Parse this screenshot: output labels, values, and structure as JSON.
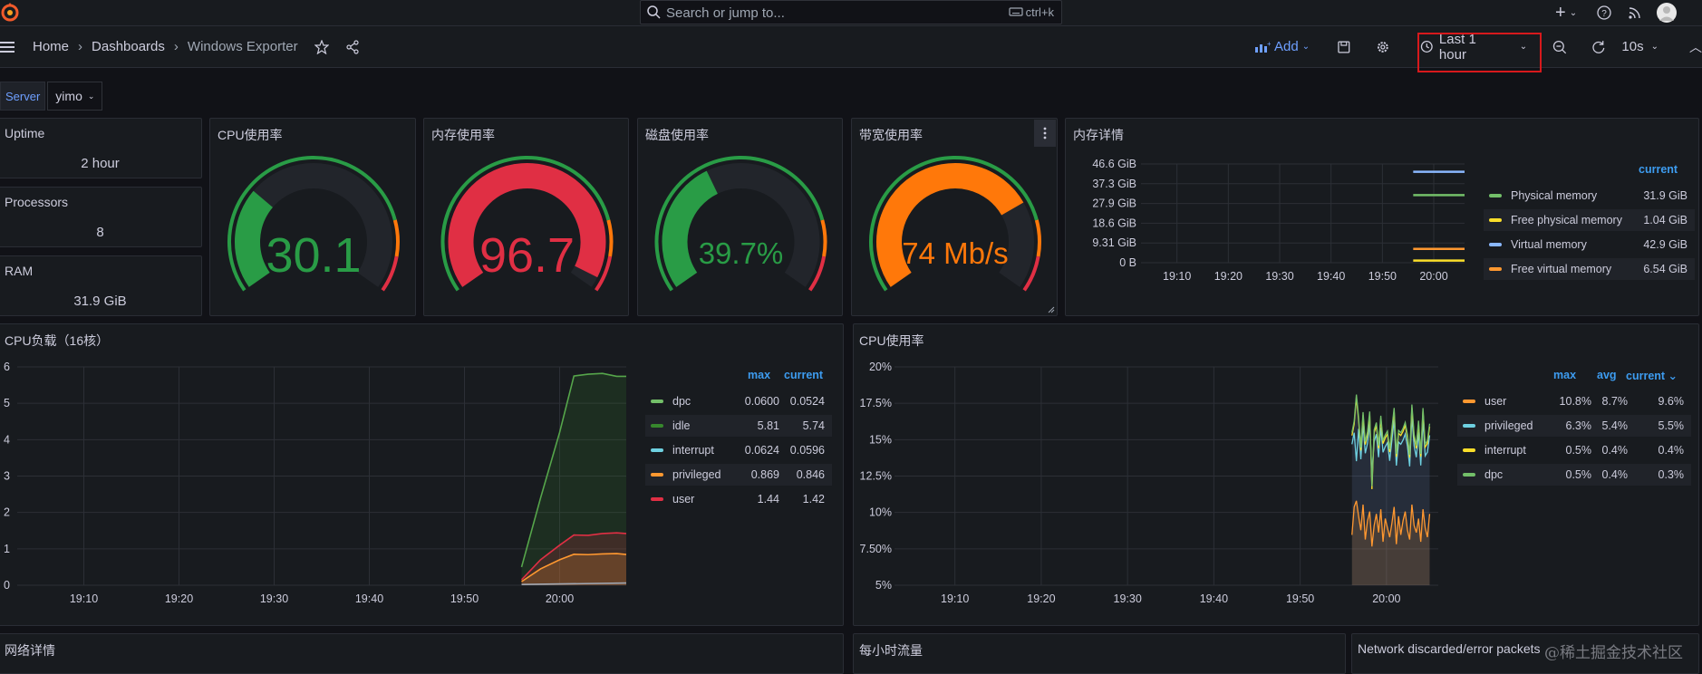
{
  "topbar": {
    "search_placeholder": "Search or jump to...",
    "search_shortcut": "ctrl+k",
    "icons": [
      "grafana-logo-icon",
      "search-icon",
      "keyboard-icon",
      "plus-icon",
      "help-icon",
      "rss-icon",
      "avatar"
    ]
  },
  "navbar": {
    "breadcrumbs": [
      "Home",
      "Dashboards",
      "Windows Exporter"
    ],
    "add_label": "Add",
    "time_range": "Last 1 hour",
    "refresh_interval": "10s"
  },
  "variables": {
    "label": "Server",
    "value": "yimo"
  },
  "stats": [
    {
      "title": "Uptime",
      "value": "2 hour"
    },
    {
      "title": "Processors",
      "value": "8"
    },
    {
      "title": "RAM",
      "value": "31.9 GiB"
    }
  ],
  "gauges": [
    {
      "title": "CPU使用率",
      "value": "30.1",
      "percent": 30.1,
      "color": "#299c46"
    },
    {
      "title": "内存使用率",
      "value": "96.7",
      "percent": 96.7,
      "color": "#e02f44"
    },
    {
      "title": "磁盘使用率",
      "value": "39.7%",
      "percent": 39.7,
      "color": "#299c46"
    },
    {
      "title": "带宽使用率",
      "value": "74 Mb/s",
      "percent": 74,
      "color": "#ff780a"
    }
  ],
  "memory_panel": {
    "title": "内存详情",
    "legend_header": "current",
    "y_ticks": [
      "46.6 GiB",
      "37.3 GiB",
      "27.9 GiB",
      "18.6 GiB",
      "9.31 GiB",
      "0 B"
    ],
    "x_ticks": [
      "19:10",
      "19:20",
      "19:30",
      "19:40",
      "19:50",
      "20:00"
    ],
    "legend": [
      {
        "name": "Physical memory",
        "current": "31.9 GiB",
        "color": "#73bf69"
      },
      {
        "name": "Free physical memory",
        "current": "1.04 GiB",
        "color": "#fade2a"
      },
      {
        "name": "Virtual memory",
        "current": "42.9 GiB",
        "color": "#8ab8ff"
      },
      {
        "name": "Free virtual memory",
        "current": "6.54 GiB",
        "color": "#ff9830"
      }
    ]
  },
  "cpu_load_panel": {
    "title": "CPU负载（16核）",
    "legend_headers": [
      "max",
      "current"
    ],
    "y_ticks": [
      "6",
      "5",
      "4",
      "3",
      "2",
      "1",
      "0"
    ],
    "x_ticks": [
      "19:10",
      "19:20",
      "19:30",
      "19:40",
      "19:50",
      "20:00"
    ],
    "legend": [
      {
        "name": "dpc",
        "max": "0.0600",
        "current": "0.0524",
        "color": "#73bf69"
      },
      {
        "name": "idle",
        "max": "5.81",
        "current": "5.74",
        "color": "#37872d"
      },
      {
        "name": "interrupt",
        "max": "0.0624",
        "current": "0.0596",
        "color": "#6ed0e0"
      },
      {
        "name": "privileged",
        "max": "0.869",
        "current": "0.846",
        "color": "#ff9830"
      },
      {
        "name": "user",
        "max": "1.44",
        "current": "1.42",
        "color": "#e02f44"
      }
    ]
  },
  "cpu_usage_panel": {
    "title": "CPU使用率",
    "legend_headers": [
      "max",
      "avg",
      "current"
    ],
    "y_ticks": [
      "20%",
      "17.5%",
      "15%",
      "12.5%",
      "10%",
      "7.50%",
      "5%"
    ],
    "x_ticks": [
      "19:10",
      "19:20",
      "19:30",
      "19:40",
      "19:50",
      "20:00"
    ],
    "legend": [
      {
        "name": "user",
        "max": "10.8%",
        "avg": "8.7%",
        "current": "9.6%",
        "color": "#ff9830"
      },
      {
        "name": "privileged",
        "max": "6.3%",
        "avg": "5.4%",
        "current": "5.5%",
        "color": "#6ed0e0"
      },
      {
        "name": "interrupt",
        "max": "0.5%",
        "avg": "0.4%",
        "current": "0.4%",
        "color": "#fade2a"
      },
      {
        "name": "dpc",
        "max": "0.5%",
        "avg": "0.4%",
        "current": "0.3%",
        "color": "#73bf69"
      }
    ]
  },
  "bottom_panels": [
    "网络详情",
    "每小时流量",
    "Network discarded/error packets"
  ],
  "watermark": "@稀土掘金技术社区"
}
